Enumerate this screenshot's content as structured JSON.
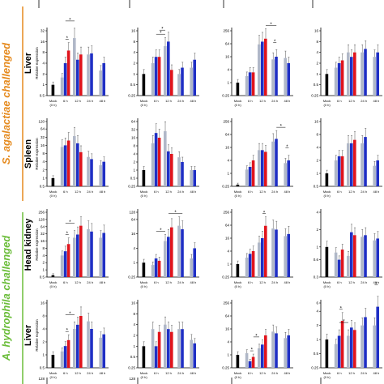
{
  "figure": {
    "group_labels": [
      {
        "text": "S. agalactiae challenged",
        "color": "#e58a1e"
      },
      {
        "text": "A. hydrophila challenged",
        "color": "#6bbd3a"
      }
    ],
    "series_colors": [
      "#000000",
      "#b0b8c8",
      "#1f2fc4",
      "#e0141c"
    ]
  },
  "chart_data": {
    "type": "bar",
    "categories": [
      "Mock (0 h)",
      "6 h",
      "12 h",
      "24 h",
      "48 h"
    ],
    "category_lines": [
      [
        "Mock",
        "(0 h)"
      ],
      [
        "6 h"
      ],
      [
        "12 h"
      ],
      [
        "24 h"
      ],
      [
        "48 h"
      ]
    ],
    "ylabel": "Relative expression",
    "rows": [
      {
        "group": "S. agalactiae challenged",
        "tissue": "Liver",
        "panels": [
          {
            "yticks": [
              "0.5",
              "1",
              "2",
              "4",
              "8",
              "16",
              "32"
            ],
            "ylim": [
              0.5,
              32
            ],
            "values": [
              1,
              1.6,
              4,
              9,
              20,
              5,
              7,
              7,
              7.5,
              2.5,
              4
            ],
            "sig": [
              [
                2,
                3
              ],
              [
                2,
                4
              ]
            ]
          },
          {
            "yticks": [
              "0.25",
              "0.5",
              "1",
              "2",
              "4",
              "8",
              "16"
            ],
            "ylim": [
              0.25,
              16
            ],
            "values": [
              1,
              2,
              3,
              3,
              6,
              8,
              1.3,
              1,
              1.5,
              1.5,
              2.5
            ],
            "sig": [
              [
                2,
                4
              ],
              [
                3,
                4
              ]
            ]
          },
          {
            "yticks": [
              "0.25",
              "1",
              "4",
              "16",
              "64",
              "256"
            ],
            "ylim": [
              0.25,
              256
            ],
            "values": [
              1,
              2,
              3,
              3,
              60,
              80,
              110,
              12,
              16,
              14,
              8
            ],
            "sig": [
              [
                6,
                8
              ],
              [
                7,
                8
              ]
            ]
          },
          {
            "yticks": [
              "0.25",
              "0.5",
              "1",
              "2",
              "4",
              "8",
              "16"
            ],
            "ylim": [
              0.25,
              16
            ],
            "values": [
              1,
              1.5,
              2,
              2.4,
              4,
              3,
              4,
              4,
              5,
              3,
              4
            ],
            "sig": []
          }
        ]
      },
      {
        "group": "S. agalactiae challenged",
        "tissue": "Spleen",
        "panels": [
          {
            "yticks": [
              "0.5",
              "1",
              "2",
              "4",
              "8",
              "16",
              "32",
              "64",
              "120"
            ],
            "ylim": [
              0.5,
              120
            ],
            "values": [
              1,
              14,
              16,
              24,
              35,
              19,
              9,
              6,
              5,
              3,
              4
            ],
            "sig": []
          },
          {
            "yticks": [
              "0.25",
              "0.5",
              "1",
              "2",
              "4",
              "8",
              "16",
              "32",
              "64"
            ],
            "ylim": [
              0.25,
              64
            ],
            "values": [
              1,
              10,
              24,
              16,
              28,
              5,
              4,
              3,
              2,
              1,
              1
            ],
            "sig": []
          },
          {
            "yticks": [
              "0.25",
              "1",
              "4",
              "16",
              "64",
              "256"
            ],
            "ylim": [
              0.25,
              256
            ],
            "values": [
              0.3,
              1.5,
              2,
              4,
              12,
              12,
              10,
              30,
              40,
              3,
              4
            ],
            "sig": [
              [
                8,
                9
              ],
              [
                9,
                10
              ]
            ]
          },
          {
            "yticks": [
              "0.5",
              "1",
              "2",
              "4",
              "8",
              "16"
            ],
            "ylim": [
              0.5,
              16
            ],
            "values": [
              1,
              2,
              2.5,
              2.5,
              5,
              5,
              6,
              5,
              7,
              1.5,
              2
            ],
            "sig": []
          }
        ]
      },
      {
        "group": "A. hydrophila challenged",
        "tissue": "Head kidney",
        "panels": [
          {
            "yticks": [
              "0.5",
              "1",
              "2",
              "4",
              "8",
              "16",
              "32",
              "64",
              "128",
              "256"
            ],
            "ylim": [
              0.5,
              256
            ],
            "values": [
              0.6,
              4,
              6,
              12,
              22,
              30,
              70,
              50,
              40,
              22,
              35
            ],
            "sig": [
              [
                2,
                3
              ],
              [
                2,
                4
              ]
            ]
          },
          {
            "yticks": [
              "0.25",
              "1",
              "4",
              "16",
              "64",
              "128"
            ],
            "ylim": [
              0.25,
              128
            ],
            "values": [
              1,
              0.8,
              1.5,
              1.2,
              8,
              12,
              30,
              35,
              25,
              1.5,
              4
            ],
            "sig": [
              [
                2,
                4
              ],
              [
                5,
                8
              ]
            ]
          },
          {
            "yticks": [
              "0.25",
              "1",
              "4",
              "16",
              "64",
              "256"
            ],
            "ylim": [
              0.25,
              256
            ],
            "values": [
              1,
              2,
              3,
              4,
              10,
              16,
              60,
              45,
              40,
              20,
              25
            ],
            "sig": [
              [
                5,
                6
              ]
            ]
          },
          {
            "yticks": [
              "0.3",
              "0.6",
              "1",
              "2",
              "4"
            ],
            "ylim": [
              0.3,
              4
            ],
            "values": [
              1,
              0.8,
              0.6,
              0.9,
              0.7,
              1.8,
              1.6,
              1.5,
              1.6,
              1.3,
              1.4
            ],
            "sig": []
          }
        ]
      },
      {
        "group": "A. hydrophila challenged",
        "tissue": "Liver",
        "panels": [
          {
            "yticks": [
              "0.5",
              "1",
              "2",
              "4",
              "8",
              "16"
            ],
            "ylim": [
              0.5,
              16
            ],
            "values": [
              1,
              1.2,
              1.6,
              2.2,
              4,
              5,
              8,
              6,
              4,
              2.5,
              3
            ],
            "sig": [
              [
                2,
                3
              ],
              [
                2,
                4
              ]
            ]
          },
          {
            "yticks": [
              "0.25",
              "0.5",
              "1",
              "2",
              "4",
              "8",
              "16"
            ],
            "ylim": [
              0.25,
              16
            ],
            "values": [
              1,
              3,
              1,
              2.5,
              4,
              3,
              2.5,
              3,
              3,
              1.5,
              1.2
            ],
            "sig": []
          },
          {
            "yticks": [
              "0.25",
              "1",
              "4",
              "16",
              "64",
              "256"
            ],
            "ylim": [
              0.25,
              256
            ],
            "values": [
              1,
              1.2,
              0.5,
              0.8,
              2,
              3,
              8,
              12,
              10,
              6,
              8
            ],
            "sig": [
              [
                2,
                3
              ],
              [
                3,
                4
              ]
            ]
          },
          {
            "yticks": [
              "0.25",
              "0.5",
              "1",
              "2",
              "4",
              "6"
            ],
            "ylim": [
              0.25,
              6
            ],
            "values": [
              1,
              0.8,
              1.2,
              2.5,
              1.2,
              1.8,
              1.6,
              2,
              3,
              2,
              5
            ],
            "sig": [
              [
                2,
                3
              ],
              [
                2,
                4
              ],
              [
                9,
                10
              ]
            ]
          }
        ]
      }
    ],
    "partial_bottom_row": {
      "yticks": [
        "128"
      ]
    }
  }
}
